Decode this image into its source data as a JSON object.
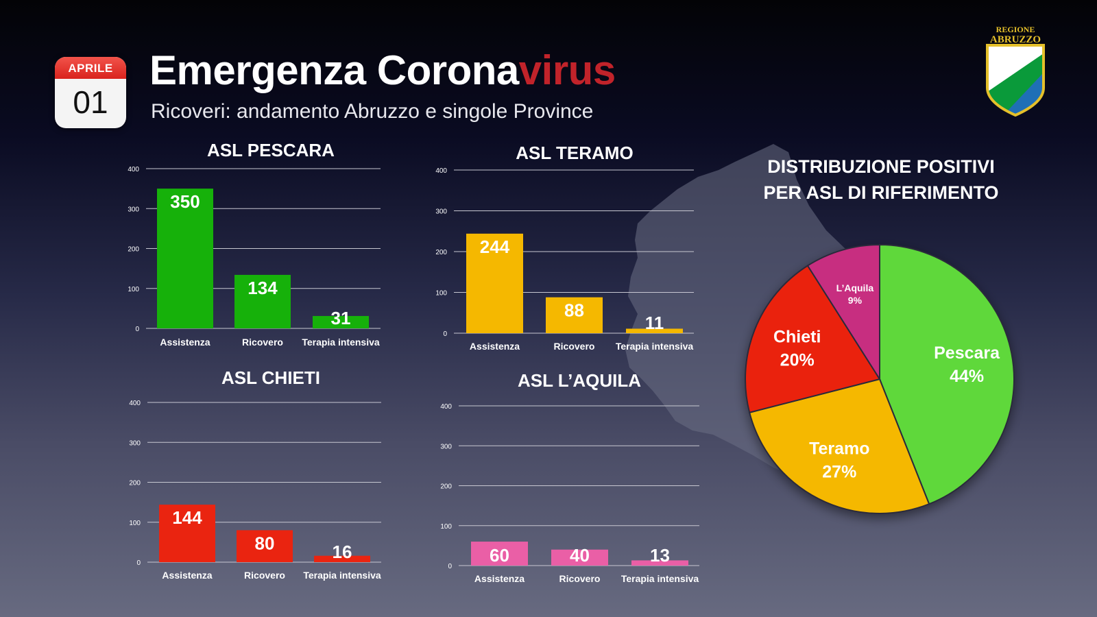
{
  "header": {
    "calendar_month": "APRILE",
    "calendar_day": "01",
    "title_main": "Emergenza Corona",
    "title_accent": "virus",
    "subtitle": "Ricoveri: andamento Abruzzo e singole Province"
  },
  "logo": {
    "text_line1": "REGIONE",
    "text_line2": "ABRUZZO",
    "colors": {
      "white": "#ffffff",
      "green": "#0a9a3a",
      "blue": "#1f6fb6",
      "gold": "#e5c02a"
    }
  },
  "pie_title": {
    "line1": "DISTRIBUZIONE POSITIVI",
    "line2": "PER ASL DI RIFERIMENTO"
  },
  "chart_data": [
    {
      "type": "bar",
      "id": "pescara",
      "title": "ASL PESCARA",
      "categories": [
        "Assistenza",
        "Ricovero",
        "Terapia intensiva"
      ],
      "values": [
        350,
        134,
        31
      ],
      "ylim": [
        0,
        400
      ],
      "yticks": [
        0,
        100,
        200,
        300,
        400
      ],
      "grid": true,
      "color": "#16b10a"
    },
    {
      "type": "bar",
      "id": "teramo",
      "title": "ASL TERAMO",
      "categories": [
        "Assistenza",
        "Ricovero",
        "Terapia intensiva"
      ],
      "values": [
        244,
        88,
        11
      ],
      "ylim": [
        0,
        400
      ],
      "yticks": [
        0,
        100,
        200,
        300,
        400
      ],
      "grid": true,
      "color": "#f5b800"
    },
    {
      "type": "bar",
      "id": "chieti",
      "title": "ASL CHIETI",
      "categories": [
        "Assistenza",
        "Ricovero",
        "Terapia intensiva"
      ],
      "values": [
        144,
        80,
        16
      ],
      "ylim": [
        0,
        400
      ],
      "yticks": [
        0,
        100,
        200,
        300,
        400
      ],
      "grid": true,
      "color": "#ea2410"
    },
    {
      "type": "bar",
      "id": "laquila",
      "title": "ASL L’AQUILA",
      "categories": [
        "Assistenza",
        "Ricovero",
        "Terapia intensiva"
      ],
      "values": [
        60,
        40,
        13
      ],
      "ylim": [
        0,
        400
      ],
      "yticks": [
        0,
        100,
        200,
        300,
        400
      ],
      "grid": true,
      "color": "#ea5fa6"
    },
    {
      "type": "pie",
      "id": "distribuzione",
      "slices": [
        {
          "label": "Pescara",
          "pct_label": "44%",
          "value": 44,
          "color": "#5ed83a"
        },
        {
          "label": "Teramo",
          "pct_label": "27%",
          "value": 27,
          "color": "#f5b800"
        },
        {
          "label": "Chieti",
          "pct_label": "20%",
          "value": 20,
          "color": "#ea2410"
        },
        {
          "label": "L’Aquila",
          "pct_label": "9%",
          "value": 9,
          "color": "#c72e80"
        }
      ]
    }
  ]
}
